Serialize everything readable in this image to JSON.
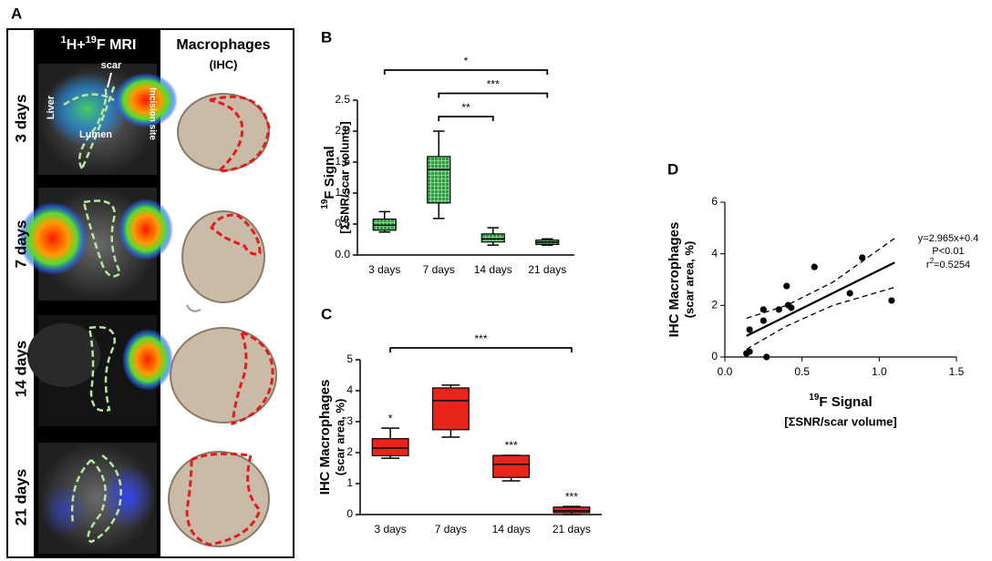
{
  "panel_labels": [
    "A",
    "B",
    "C",
    "D"
  ],
  "panel_a": {
    "mri_header": [
      {
        "text": "1",
        "sup": true
      },
      {
        "text": "H+",
        "sup": false
      },
      {
        "text": "19",
        "sup": true
      },
      {
        "text": "F  MRI",
        "sup": false
      }
    ],
    "ihc_header": [
      "Macrophages",
      "(IHC)"
    ],
    "rows": [
      "3 days",
      "7 days",
      "14 days",
      "21 days"
    ],
    "overlay_labels": [
      "scar",
      "Liver",
      "Lumen",
      "Incision site"
    ]
  },
  "chart_data": [
    {
      "type": "box",
      "categories": [
        "3 days",
        "7 days",
        "14 days",
        "21 days"
      ],
      "color": "#2e9a3e",
      "pattern": "grid",
      "ylabel": {
        "sup": "19",
        "text": "F Signal"
      },
      "ylabel2": "[ΣSNR/scar volume]",
      "ylim": [
        0,
        2.5
      ],
      "yticks": [
        {
          "value": 0,
          "label": "0.0"
        },
        0.5,
        {
          "value": 1,
          "label": "1.0"
        },
        1.5,
        {
          "value": 2,
          "label": "2.0"
        },
        2.5
      ],
      "boxes": [
        {
          "min": 0.37,
          "q1": 0.4,
          "median": 0.48,
          "q3": 0.58,
          "max": 0.7
        },
        {
          "min": 0.59,
          "q1": 0.84,
          "median": 1.38,
          "q3": 1.59,
          "max": 2.0
        },
        {
          "min": 0.16,
          "q1": 0.21,
          "median": 0.26,
          "q3": 0.34,
          "max": 0.44
        },
        {
          "min": 0.16,
          "q1": 0.17,
          "median": 0.21,
          "q3": 0.24,
          "max": 0.26
        }
      ],
      "brackets": [
        {
          "label": "*",
          "from": 0,
          "to": 3
        },
        {
          "label": "***",
          "from": 1,
          "to": 3
        },
        {
          "label": "**",
          "from": 1,
          "to": 2
        }
      ]
    },
    {
      "type": "box",
      "categories": [
        "3 days",
        "7 days",
        "14 days",
        "21 days"
      ],
      "color": "#e8251a",
      "ylabel": {
        "sup": null,
        "text": "IHC Macrophages"
      },
      "ylabel2": "(scar area, %)",
      "ylim": [
        0,
        5
      ],
      "yticks": [
        0,
        1,
        2,
        3,
        4,
        5
      ],
      "boxes": [
        {
          "min": 1.82,
          "q1": 1.9,
          "median": 2.15,
          "q3": 2.45,
          "max": 2.79
        },
        {
          "min": 2.5,
          "q1": 2.74,
          "median": 3.68,
          "q3": 4.09,
          "max": 4.18
        },
        {
          "min": 1.09,
          "q1": 1.2,
          "median": 1.62,
          "q3": 1.91,
          "max": 1.91
        },
        {
          "min": 0,
          "q1": 0.06,
          "median": 0.12,
          "q3": 0.24,
          "max": 0.26
        }
      ],
      "box_labels": [
        "*",
        null,
        "***",
        "***"
      ],
      "brackets": [
        {
          "label": "***",
          "from": 0,
          "to": 3
        }
      ]
    },
    {
      "type": "scatter",
      "color": "#000000",
      "x": [
        0.14,
        0.16,
        0.16,
        0.25,
        0.27,
        0.25,
        0.4,
        0.35,
        0.41,
        0.43,
        0.58,
        0.81,
        0.89,
        1.08
      ],
      "y": [
        0.14,
        0.21,
        1.06,
        1.41,
        0,
        1.84,
        2.75,
        1.84,
        2.01,
        1.91,
        3.49,
        2.47,
        3.85,
        2.19
      ],
      "xlim": [
        0,
        1.5
      ],
      "ylim": [
        0,
        6
      ],
      "xticks": [
        {
          "value": 0,
          "label": "0.0"
        },
        0.5,
        {
          "value": 1,
          "label": "1.0"
        },
        1.5
      ],
      "yticks": [
        0,
        2,
        4,
        6
      ],
      "xlabel": {
        "sup": "19",
        "text": "F Signal"
      },
      "xlabel2": "[ΣSNR/scar volume]",
      "ylabel": {
        "sup": null,
        "text": "IHC Macrophages"
      },
      "ylabel2": "(scar area, %)",
      "fit": {
        "slope": 2.965,
        "intercept": 0.4,
        "x": [
          0.14,
          1.1
        ],
        "equation": "y=2.965x+0.4"
      },
      "p_label": "P<0.01",
      "r2_label": {
        "base": "r",
        "sup": "2",
        "text": "=0.5254"
      },
      "band_x": [
        0.14,
        0.4,
        0.7,
        1.1
      ],
      "ci_upper": [
        1.5,
        2.0,
        2.9,
        4.6
      ],
      "ci_lower": [
        0.3,
        1.2,
        2.0,
        2.7
      ]
    }
  ]
}
